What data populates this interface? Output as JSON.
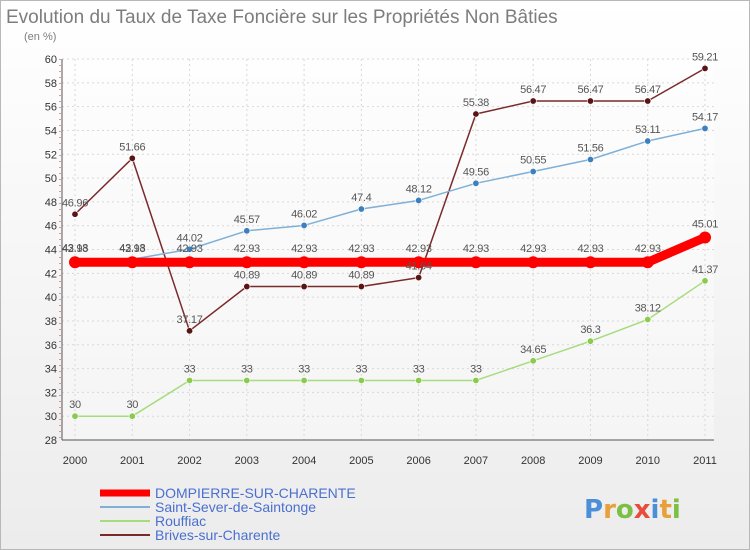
{
  "chart_data": {
    "type": "line",
    "title": "Evolution du Taux de Taxe Foncière sur les Propriétés Non Bâties",
    "subtitle": "(en %)",
    "categories": [
      "2000",
      "2001",
      "2002",
      "2003",
      "2004",
      "2005",
      "2006",
      "2007",
      "2008",
      "2009",
      "2010",
      "2011"
    ],
    "ylim": [
      28,
      60
    ],
    "yticks": [
      28,
      30,
      32,
      34,
      36,
      38,
      40,
      42,
      44,
      46,
      48,
      50,
      52,
      54,
      56,
      58,
      60
    ],
    "grid": true,
    "series": [
      {
        "name": "Brives-sur-Charente",
        "color": "#7a2a2a",
        "marker": "#5a1414",
        "values": [
          46.96,
          51.66,
          37.17,
          40.89,
          40.89,
          40.89,
          41.64,
          55.38,
          56.47,
          56.47,
          56.47,
          59.21
        ],
        "labels": [
          "46.96",
          "51.66",
          "37.17",
          "40.89",
          "40.89",
          "40.89",
          "41.64",
          "55.38",
          "56.47",
          "56.47",
          "56.47",
          "59.21"
        ]
      },
      {
        "name": "Saint-Sever-de-Saintonge",
        "color": "#7fb0d8",
        "marker": "#3e7fbe",
        "values": [
          43.18,
          43.18,
          44.02,
          45.57,
          46.02,
          47.4,
          48.12,
          49.56,
          50.55,
          51.56,
          53.11,
          54.17
        ],
        "labels": [
          "43.18",
          "43.18",
          "44.02",
          "45.57",
          "46.02",
          "47.4",
          "48.12",
          "49.56",
          "50.55",
          "51.56",
          "53.11",
          "54.17"
        ]
      },
      {
        "name": "Rouffiac",
        "color": "#a6dc7e",
        "marker": "#8acb4f",
        "values": [
          30,
          30,
          33,
          33,
          33,
          33,
          33,
          33,
          34.65,
          36.3,
          38.12,
          41.37
        ],
        "labels": [
          "30",
          "30",
          "33",
          "33",
          "33",
          "33",
          "33",
          "33",
          "34.65",
          "36.3",
          "38.12",
          "41.37"
        ]
      },
      {
        "name": "DOMPIERRE-SUR-CHARENTE",
        "color": "#ff0000",
        "marker": "#ff0000",
        "values": [
          42.93,
          42.93,
          42.93,
          42.93,
          42.93,
          42.93,
          42.93,
          42.93,
          42.93,
          42.93,
          42.93,
          45.01
        ],
        "labels": [
          "42.93",
          "42.93",
          "42.93",
          "42.93",
          "42.93",
          "42.93",
          "42.93",
          "42.93",
          "42.93",
          "42.93",
          "42.93",
          "45.01"
        ]
      }
    ],
    "legend": [
      {
        "name": "DOMPIERRE-SUR-CHARENTE",
        "color": "#ff0000",
        "text_color": "#4a6fd0"
      },
      {
        "name": "Saint-Sever-de-Saintonge",
        "color": "#7fb0d8",
        "text_color": "#4a6fd0"
      },
      {
        "name": "Rouffiac",
        "color": "#a6dc7e",
        "text_color": "#4a6fd0"
      },
      {
        "name": "Brives-sur-Charente",
        "color": "#7a2a2a",
        "text_color": "#4a6fd0"
      }
    ]
  },
  "brand": {
    "letters": [
      "P",
      "r",
      "o",
      "x",
      "i",
      "t",
      "i"
    ],
    "colors": [
      "#4a8fd8",
      "#e8a03a",
      "#7bc043",
      "#e84c3d",
      "#4a8fd8",
      "#e8a03a",
      "#7bc043"
    ]
  }
}
